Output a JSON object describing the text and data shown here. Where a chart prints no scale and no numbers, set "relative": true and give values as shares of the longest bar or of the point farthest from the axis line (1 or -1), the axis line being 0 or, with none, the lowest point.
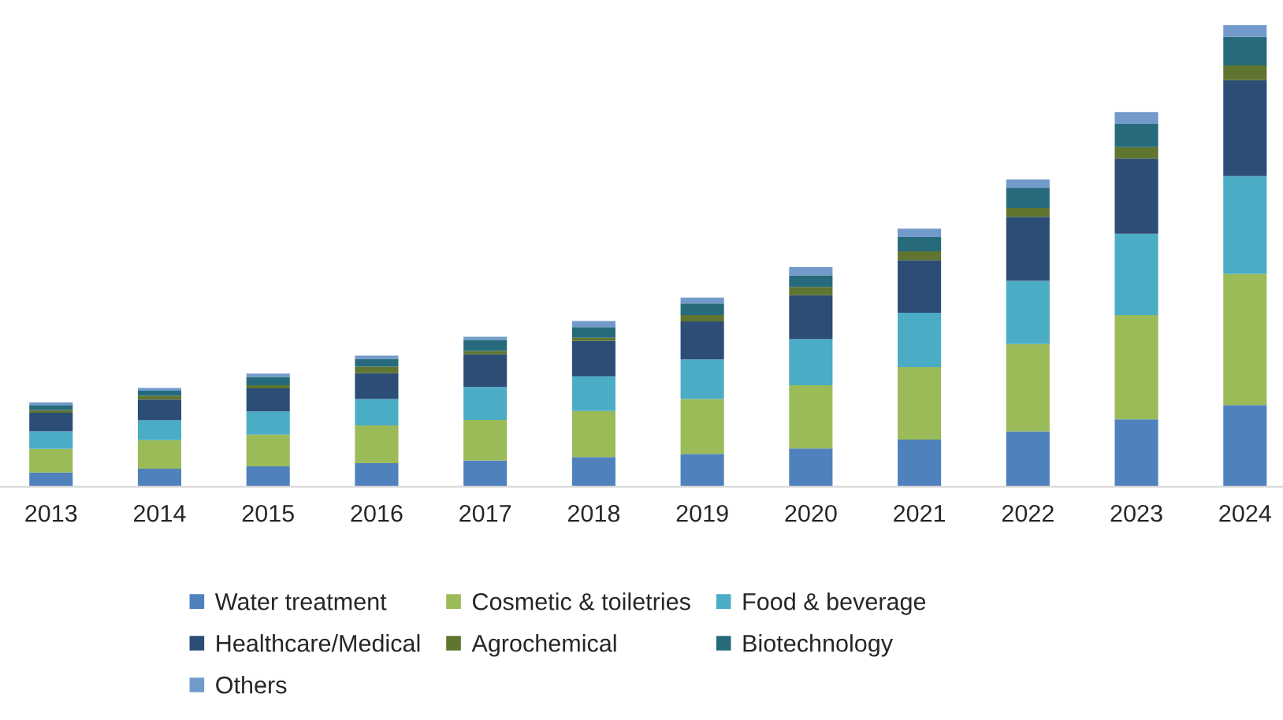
{
  "chart_data": {
    "type": "bar",
    "stacked": true,
    "relative": true,
    "legend": "bottom",
    "grid": false,
    "categories": [
      "2013",
      "2014",
      "2015",
      "2016",
      "2017",
      "2018",
      "2019",
      "2020",
      "2021",
      "2022",
      "2023",
      "2024"
    ],
    "series": [
      {
        "name": "Water treatment",
        "color": "#4f81bd",
        "values": [
          0.031,
          0.039,
          0.044,
          0.051,
          0.057,
          0.064,
          0.071,
          0.083,
          0.102,
          0.12,
          0.146,
          0.177
        ]
      },
      {
        "name": "Cosmetic & toiletries",
        "color": "#9bbb59",
        "values": [
          0.051,
          0.062,
          0.069,
          0.082,
          0.088,
          0.1,
          0.119,
          0.137,
          0.157,
          0.189,
          0.226,
          0.284
        ]
      },
      {
        "name": "Food & beverage",
        "color": "#4bacc6",
        "values": [
          0.038,
          0.043,
          0.05,
          0.057,
          0.071,
          0.075,
          0.086,
          0.1,
          0.118,
          0.137,
          0.176,
          0.212
        ]
      },
      {
        "name": "Healthcare/Medical",
        "color": "#2c4d75",
        "values": [
          0.04,
          0.045,
          0.05,
          0.056,
          0.071,
          0.077,
          0.082,
          0.095,
          0.114,
          0.139,
          0.163,
          0.208
        ]
      },
      {
        "name": "Agrochemical",
        "color": "#5f7530",
        "values": [
          0.006,
          0.008,
          0.007,
          0.014,
          0.007,
          0.007,
          0.014,
          0.018,
          0.019,
          0.019,
          0.025,
          0.032
        ]
      },
      {
        "name": "Biotechnology",
        "color": "#276a7c",
        "values": [
          0.011,
          0.011,
          0.018,
          0.017,
          0.024,
          0.023,
          0.025,
          0.025,
          0.031,
          0.044,
          0.051,
          0.062
        ]
      },
      {
        "name": "Others",
        "color": "#729aca",
        "values": [
          0.006,
          0.006,
          0.007,
          0.007,
          0.007,
          0.013,
          0.013,
          0.018,
          0.018,
          0.018,
          0.025,
          0.025
        ]
      }
    ]
  }
}
